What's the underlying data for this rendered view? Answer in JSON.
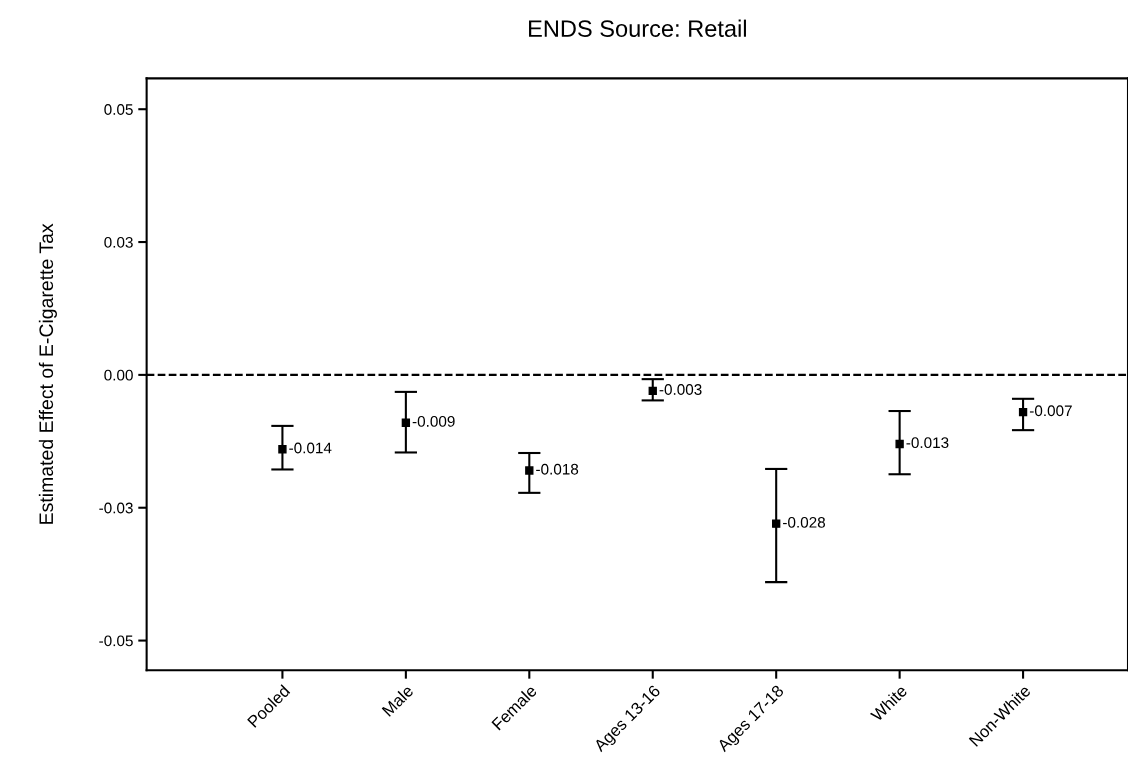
{
  "chart_data": {
    "type": "scatter",
    "title": "ENDS Source: Retail",
    "ylabel": "Estimated Effect of E-Cigarette Tax",
    "categories": [
      "Pooled",
      "Male",
      "Female",
      "Ages 13-16",
      "Ages 17-18",
      "White",
      "Non-White"
    ],
    "values": [
      -0.014,
      -0.009,
      -0.018,
      -0.003,
      -0.028,
      -0.013,
      -0.007
    ],
    "errors": [
      [
        -0.0178,
        -0.0096
      ],
      [
        -0.0146,
        -0.0032
      ],
      [
        -0.0222,
        -0.0147
      ],
      [
        -0.0048,
        -0.0008
      ],
      [
        -0.039,
        -0.0177
      ],
      [
        -0.0187,
        -0.0068
      ],
      [
        -0.0104,
        -0.0045
      ]
    ],
    "color": "#000000",
    "marker": "square",
    "data_labels": true,
    "grid": false,
    "legend": false,
    "ylim": [
      -0.0556,
      0.0558
    ],
    "yticks": [
      {
        "value": -0.05,
        "label": "-0.05"
      },
      {
        "value": -0.025,
        "label": "-0.03"
      },
      {
        "value": 0,
        "label": "0.00"
      },
      {
        "value": 0.025,
        "label": "0.03"
      },
      {
        "value": 0.05,
        "label": "0.05"
      }
    ],
    "ref_lines": [
      {
        "axis": "y",
        "value": 0,
        "line_style": "dashed",
        "color": "#000000"
      }
    ]
  }
}
